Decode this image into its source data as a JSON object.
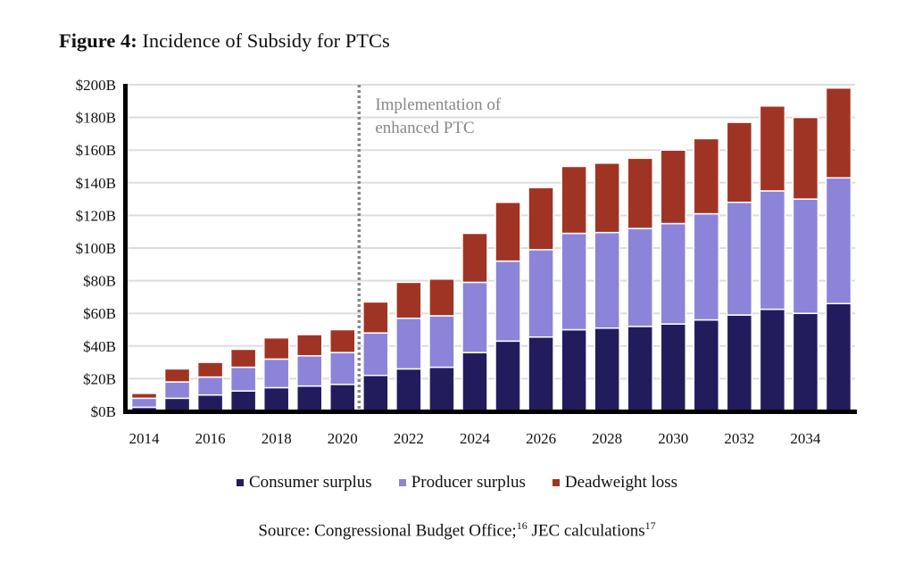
{
  "title": {
    "bold": "Figure 4:",
    "rest": " Incidence of Subsidy for PTCs"
  },
  "annotation": {
    "line1": "Implementation of",
    "line2": "enhanced PTC",
    "at_year": 2020.5
  },
  "source": {
    "prefix": "Source: Congressional Budget Office;",
    "ref1": "16",
    "middle": " JEC calculations",
    "ref2": "17"
  },
  "colors": {
    "consumer": "#231C5C",
    "producer": "#8C84D8",
    "deadweight": "#A03424",
    "grid": "#DDDDDD",
    "annotation": "#888888"
  },
  "chart_data": {
    "type": "bar",
    "stacked": true,
    "title": "Figure 4: Incidence of Subsidy for PTCs",
    "xlabel": "",
    "ylabel": "",
    "ylim": [
      0,
      200
    ],
    "y_ticks": [
      0,
      20,
      40,
      60,
      80,
      100,
      120,
      140,
      160,
      180,
      200
    ],
    "y_tick_labels": [
      "$0B",
      "$20B",
      "$40B",
      "$60B",
      "$80B",
      "$100B",
      "$120B",
      "$140B",
      "$160B",
      "$180B",
      "$200B"
    ],
    "x_tick_labels": [
      "2014",
      "2016",
      "2018",
      "2020",
      "2022",
      "2024",
      "2026",
      "2028",
      "2030",
      "2032",
      "2034"
    ],
    "categories": [
      "2014",
      "2015",
      "2016",
      "2017",
      "2018",
      "2019",
      "2020",
      "2021",
      "2022",
      "2023",
      "2024",
      "2025",
      "2026",
      "2027",
      "2028",
      "2029",
      "2030",
      "2031",
      "2032",
      "2033",
      "2034",
      "2035"
    ],
    "grid": true,
    "legend_position": "bottom",
    "series": [
      {
        "name": "Consumer surplus",
        "values": [
          2.5,
          8,
          10,
          12.5,
          14.5,
          15.5,
          16.5,
          22,
          26,
          27,
          36,
          43,
          45.5,
          50,
          51,
          52,
          53.5,
          56,
          59,
          62.5,
          60,
          66
        ]
      },
      {
        "name": "Producer surplus",
        "values": [
          5.5,
          10,
          11,
          14.5,
          17.5,
          18.5,
          19.5,
          26,
          31,
          31.5,
          43,
          49,
          53.5,
          59,
          58.5,
          60,
          61.5,
          65,
          69,
          72.5,
          70,
          77
        ]
      },
      {
        "name": "Deadweight loss",
        "values": [
          3,
          8,
          9,
          11,
          13,
          13,
          14,
          19,
          22,
          22.5,
          30,
          36,
          38,
          41,
          42.5,
          43,
          45,
          46,
          49,
          52,
          50,
          55
        ]
      }
    ]
  }
}
